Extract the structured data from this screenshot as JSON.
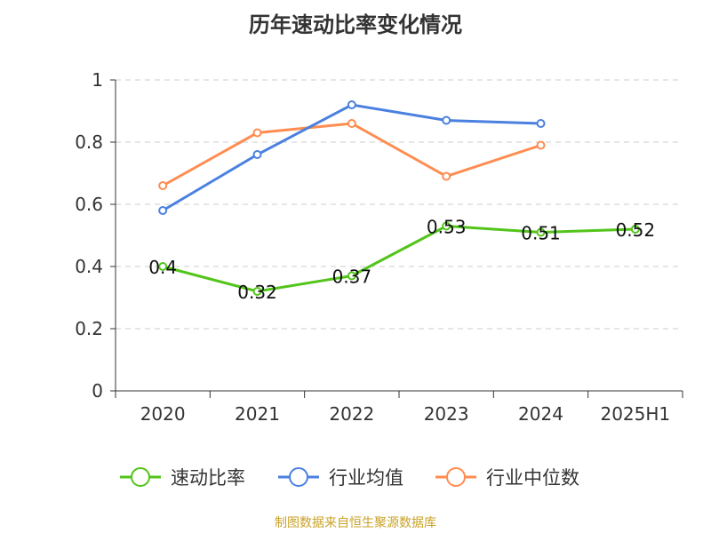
{
  "chart_data": {
    "type": "line",
    "title": "历年速动比率变化情况",
    "categories": [
      "2020",
      "2021",
      "2022",
      "2023",
      "2024",
      "2025H1"
    ],
    "ylim": [
      0,
      1
    ],
    "yticks": [
      "0",
      "0.2",
      "0.4",
      "0.6",
      "0.8",
      "1"
    ],
    "grid": true,
    "legend_position": "bottom",
    "series": [
      {
        "name": "速动比率",
        "color": "#52c41a",
        "values": [
          0.4,
          0.32,
          0.37,
          0.53,
          0.51,
          0.52
        ],
        "labels": [
          "0.4",
          "0.32",
          "0.37",
          "0.53",
          "0.51",
          "0.52"
        ]
      },
      {
        "name": "行业均值",
        "color": "#4a80e0",
        "values": [
          0.58,
          0.76,
          0.92,
          0.87,
          0.86,
          null
        ]
      },
      {
        "name": "行业中位数",
        "color": "#ff8c50",
        "values": [
          0.66,
          0.83,
          0.86,
          0.69,
          0.79,
          null
        ]
      }
    ]
  },
  "source": "制图数据来自恒生聚源数据库"
}
